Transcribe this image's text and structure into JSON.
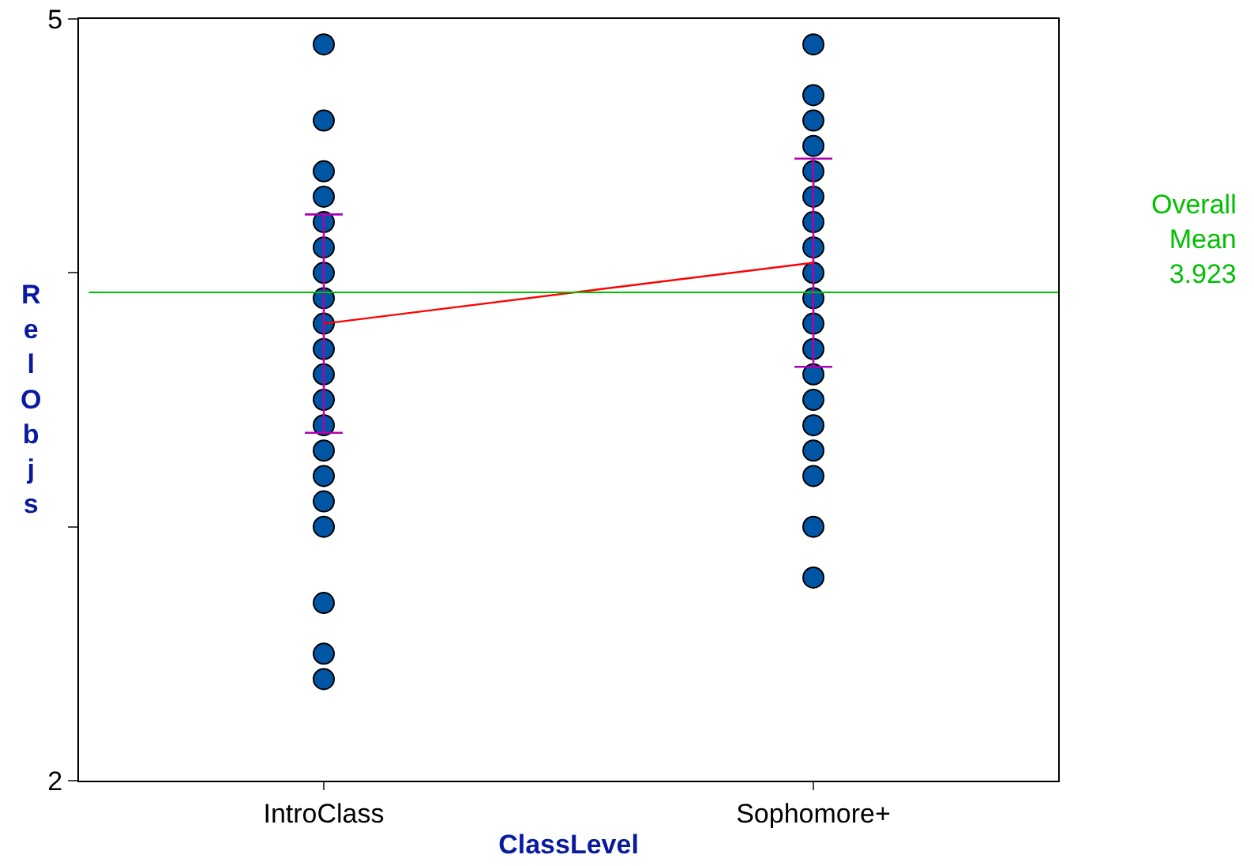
{
  "chart_data": {
    "type": "scatter",
    "categories": [
      "IntroClass",
      "Sophomore+"
    ],
    "xlabel": "ClassLevel",
    "ylabel": "RelObjs",
    "ylim": [
      2,
      5
    ],
    "yticks": [
      2,
      {
        "value": 3,
        "label": null
      },
      {
        "value": 4,
        "label": null
      },
      5
    ],
    "grid": false,
    "series": [
      {
        "marker": "circle",
        "color": "#0055a5",
        "x": [
          "IntroClass",
          "IntroClass",
          "IntroClass",
          "IntroClass",
          "IntroClass",
          "IntroClass",
          "IntroClass",
          "IntroClass",
          "IntroClass",
          "IntroClass",
          "IntroClass",
          "IntroClass",
          "IntroClass",
          "IntroClass",
          "IntroClass",
          "IntroClass",
          "IntroClass",
          "IntroClass",
          "IntroClass",
          "IntroClass",
          "Sophomore+",
          "Sophomore+",
          "Sophomore+",
          "Sophomore+",
          "Sophomore+",
          "Sophomore+",
          "Sophomore+",
          "Sophomore+",
          "Sophomore+",
          "Sophomore+",
          "Sophomore+",
          "Sophomore+",
          "Sophomore+",
          "Sophomore+",
          "Sophomore+",
          "Sophomore+",
          "Sophomore+",
          "Sophomore+",
          "Sophomore+"
        ],
        "values": [
          4.9,
          4.6,
          4.4,
          4.3,
          4.2,
          4.1,
          4.0,
          3.9,
          3.8,
          3.7,
          3.6,
          3.5,
          3.4,
          3.3,
          3.2,
          3.1,
          3.0,
          2.7,
          2.5,
          2.4,
          4.9,
          4.7,
          4.6,
          4.5,
          4.4,
          4.3,
          4.2,
          4.1,
          4.0,
          3.9,
          3.8,
          3.7,
          3.6,
          3.5,
          3.4,
          3.3,
          3.2,
          3.0,
          2.8
        ]
      },
      {
        "type": "line",
        "marker": "none",
        "color": "#ff0000",
        "values": [
          3.8,
          4.04
        ],
        "errors": [
          0.43,
          0.41
        ]
      }
    ],
    "ref_lines": [
      {
        "axis": "y",
        "value": 3.923,
        "label": "Overall Mean 3.923",
        "color": "#00c000"
      }
    ]
  }
}
